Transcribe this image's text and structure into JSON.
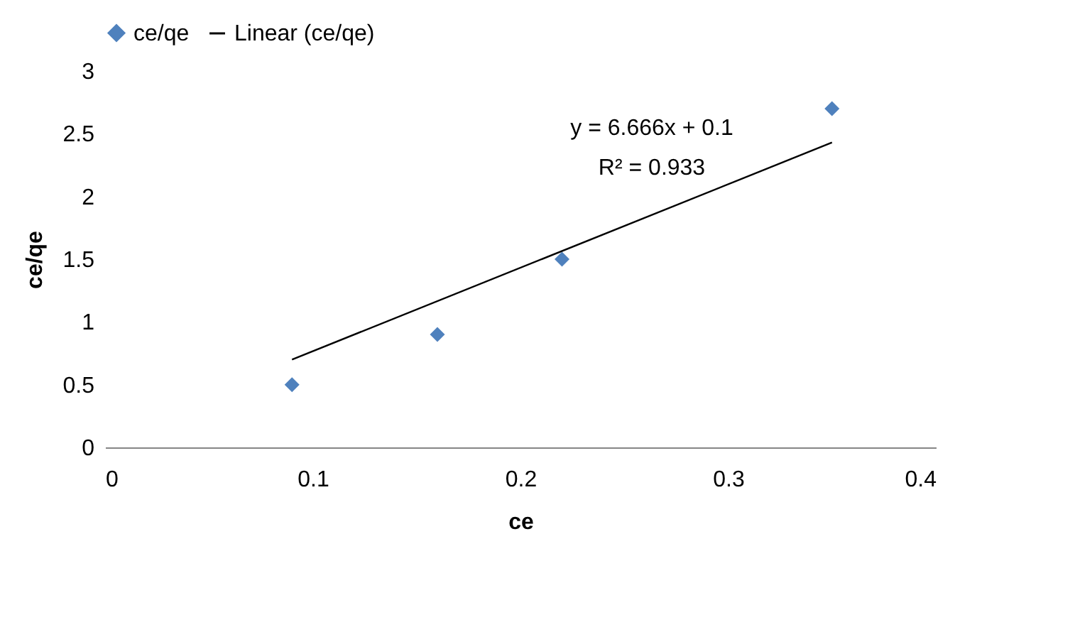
{
  "chart_data": {
    "type": "scatter",
    "xlabel": "ce",
    "ylabel": "ce/qe",
    "legend": "top",
    "grid": false,
    "xlim": [
      0,
      0.4
    ],
    "xticks": [
      0,
      0.1,
      0.2,
      0.3,
      0.4
    ],
    "ylim": [
      0,
      3
    ],
    "yticks": [
      0,
      0.5,
      1,
      1.5,
      2,
      2.5,
      3
    ],
    "series": [
      {
        "name": "ce/qe",
        "marker": "diamond",
        "color": "#4f81bd",
        "x": [
          0.09,
          0.16,
          0.22,
          0.35
        ],
        "values": [
          0.5,
          0.9,
          1.5,
          2.7
        ]
      },
      {
        "name": "Linear (ce/qe)",
        "type": "line",
        "marker": "none",
        "color": "#000000",
        "x": [
          0.09,
          0.35
        ],
        "values": [
          0.7,
          2.43
        ]
      }
    ],
    "annotations": [
      "y = 6.666x + 0.1",
      "R² = 0.933"
    ]
  }
}
